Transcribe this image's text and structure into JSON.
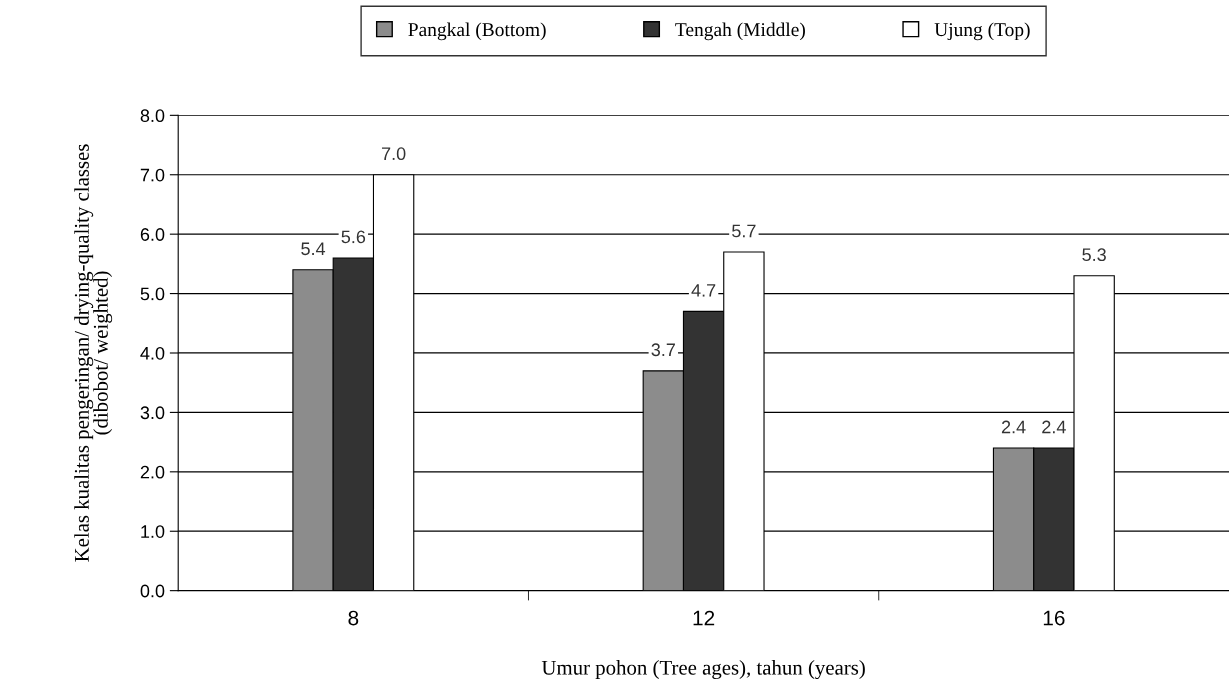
{
  "chart_data": {
    "type": "bar",
    "categories": [
      "8",
      "12",
      "16"
    ],
    "series": [
      {
        "name": "Pangkal (Bottom)",
        "color": "#8c8c8c",
        "values": [
          5.4,
          3.7,
          2.4
        ],
        "value_labels": [
          "5.4",
          "3.7",
          "2.4"
        ]
      },
      {
        "name": "Tengah (Middle)",
        "color": "#333333",
        "values": [
          5.6,
          4.7,
          2.4
        ],
        "value_labels": [
          "5.6",
          "4.7",
          "2.4"
        ]
      },
      {
        "name": "Ujung (Top)",
        "color": "#ffffff",
        "values": [
          7.0,
          5.7,
          5.3
        ],
        "value_labels": [
          "7.0",
          "5.7",
          "5.3"
        ]
      }
    ],
    "xlabel": "Umur pohon (Tree ages), tahun (years)",
    "ylabel": "Kelas kualitas pengeringan/ drying-quality classes\n(dibobot/ weighted)",
    "ylim": [
      0,
      8
    ],
    "yticks": [
      {
        "value": 0,
        "label": "0.0"
      },
      {
        "value": 1,
        "label": "1.0"
      },
      {
        "value": 2,
        "label": "2.0"
      },
      {
        "value": 3,
        "label": "3.0"
      },
      {
        "value": 4,
        "label": "4.0"
      },
      {
        "value": 5,
        "label": "5.0"
      },
      {
        "value": 6,
        "label": "6.0"
      },
      {
        "value": 7,
        "label": "7.0"
      },
      {
        "value": 8,
        "label": "8.0"
      }
    ],
    "grid": "y",
    "legend": "top"
  }
}
